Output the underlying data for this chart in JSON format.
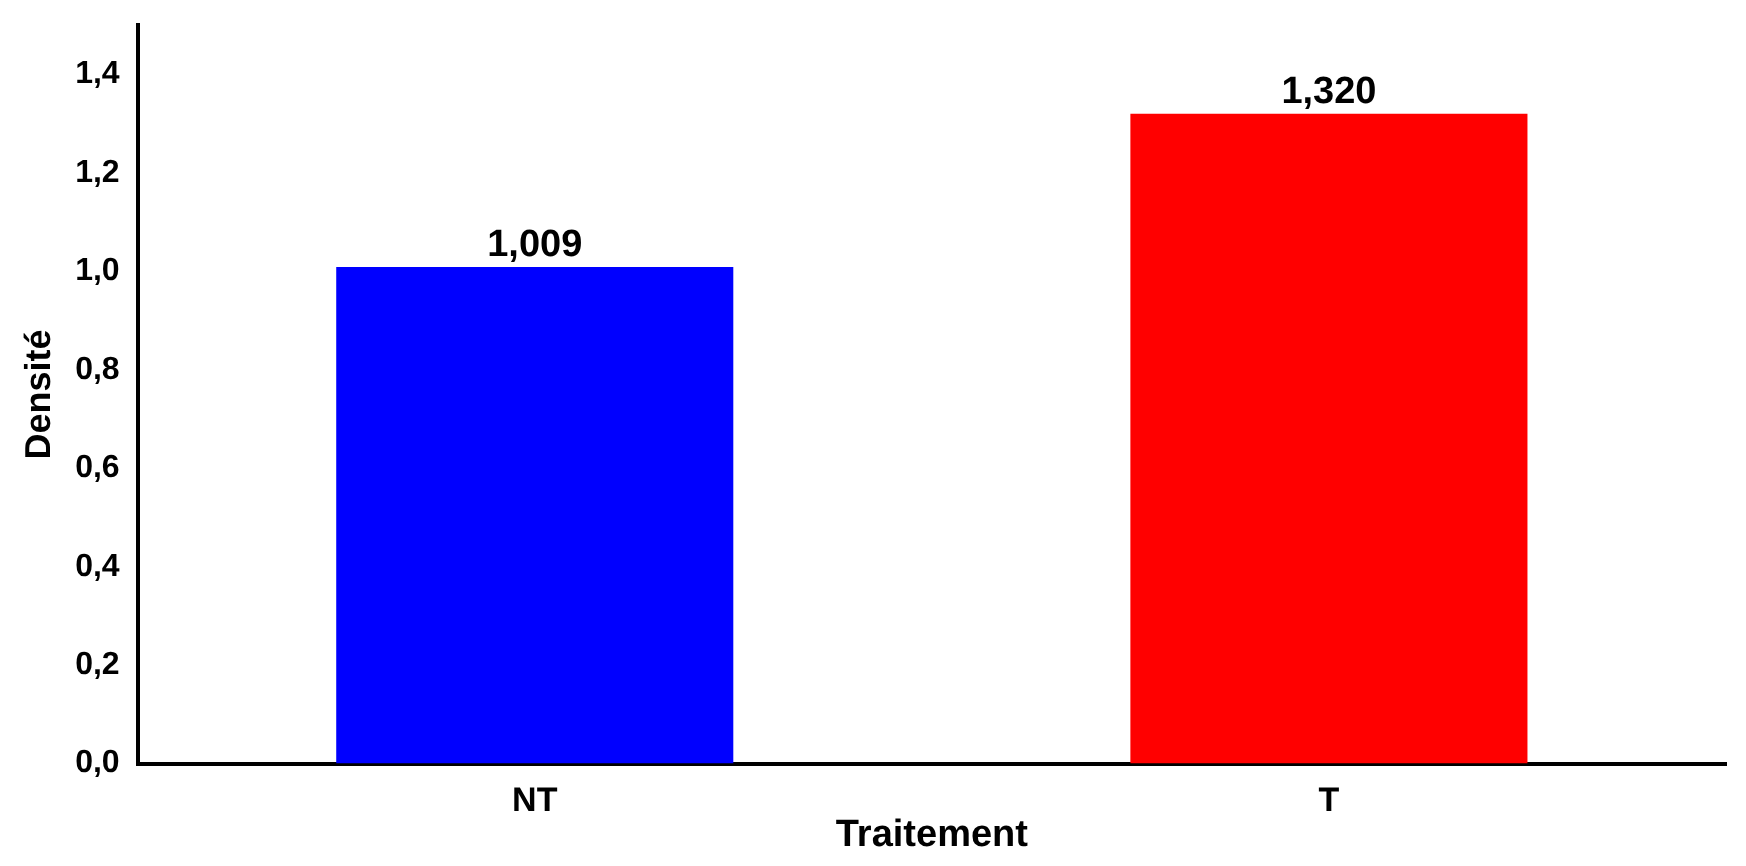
{
  "chart_data": {
    "type": "bar",
    "xlabel": "Traitement",
    "ylabel": "Densité",
    "categories": [
      "NT",
      "T"
    ],
    "values": [
      1.009,
      1.32
    ],
    "colors": [
      "#0000ff",
      "#ff0000"
    ],
    "annotations": [
      {
        "text": "1,009",
        "x": "NT",
        "y": 1.009
      },
      {
        "text": "1,320",
        "x": "T",
        "y": 1.32
      }
    ],
    "ylim": [
      0,
      1.5
    ],
    "yticks": [
      {
        "value": 0,
        "label": "0,0"
      },
      {
        "value": 0.2,
        "label": "0,2"
      },
      {
        "value": 0.4,
        "label": "0,4"
      },
      {
        "value": 0.6,
        "label": "0,6"
      },
      {
        "value": 0.8,
        "label": "0,8"
      },
      {
        "value": 1,
        "label": "1,0"
      },
      {
        "value": 1.2,
        "label": "1,2"
      },
      {
        "value": 1.4,
        "label": "1,4"
      }
    ],
    "grid": false,
    "legend": false
  }
}
